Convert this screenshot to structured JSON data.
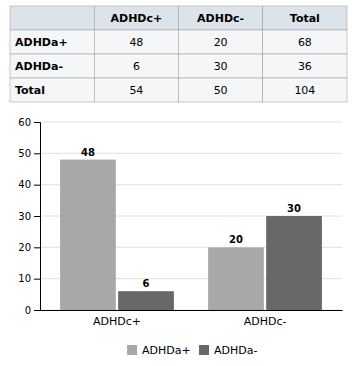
{
  "chart_data": [
    {
      "type": "table",
      "columns": [
        null,
        "ADHDc+",
        "ADHDc-",
        "Total"
      ],
      "rows": [
        {
          "label": "ADHDa+",
          "values": [
            48,
            20,
            68
          ]
        },
        {
          "label": "ADHDa-",
          "values": [
            6,
            30,
            36
          ]
        },
        {
          "label": "Total",
          "values": [
            54,
            50,
            104
          ]
        }
      ]
    },
    {
      "type": "bar",
      "categories": [
        "ADHDc+",
        "ADHDc-"
      ],
      "series": [
        {
          "name": "ADHDa+",
          "values": [
            48,
            20
          ],
          "color": "#a8a8a8"
        },
        {
          "name": "ADHDa-",
          "values": [
            6,
            30
          ],
          "color": "#686868"
        }
      ],
      "ylim": [
        0,
        60
      ],
      "yticks": [
        0,
        10,
        20,
        30,
        40,
        50,
        60
      ],
      "grid": true,
      "data_labels": true,
      "legend": "bottom"
    }
  ]
}
